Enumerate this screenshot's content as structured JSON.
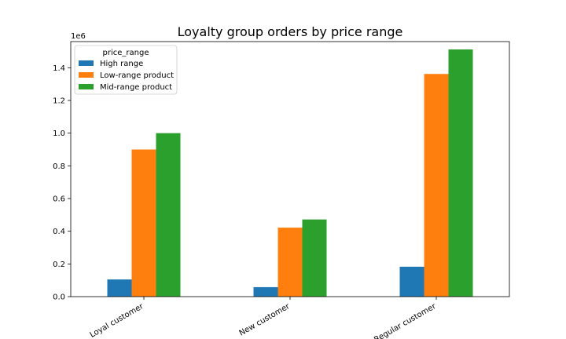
{
  "chart_data": {
    "type": "bar",
    "title": "Loyalty group orders by price range",
    "xlabel": "",
    "ylabel": "",
    "offset_label": "1e6",
    "categories": [
      "Loyal customer",
      "New customer",
      "Regular customer"
    ],
    "y_scale": 1000000,
    "ylim": [
      0,
      1560000
    ],
    "yticks": [
      0,
      200000,
      400000,
      600000,
      800000,
      1000000,
      1200000,
      1400000
    ],
    "ytick_labels": [
      "0.0",
      "0.2",
      "0.4",
      "0.6",
      "0.8",
      "1.0",
      "1.2",
      "1.4"
    ],
    "grid": false,
    "legend": {
      "title": "price_range",
      "placement": "top-left"
    },
    "series": [
      {
        "name": "High range",
        "color": "#1f77b4",
        "values": [
          105000,
          58000,
          183000
        ]
      },
      {
        "name": "Low-range product",
        "color": "#ff7f0e",
        "values": [
          900000,
          422000,
          1362000
        ]
      },
      {
        "name": "Mid-range product",
        "color": "#2ca02c",
        "values": [
          1000000,
          472000,
          1512000
        ]
      }
    ]
  }
}
